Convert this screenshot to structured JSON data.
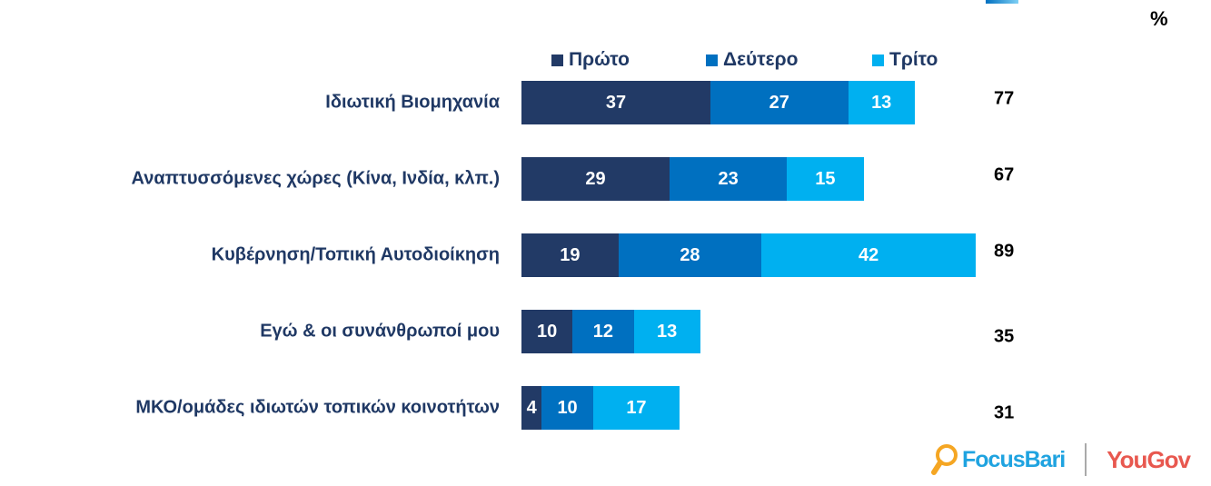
{
  "chart_data": {
    "type": "bar",
    "orientation": "horizontal",
    "stacked": true,
    "unit_label": "%",
    "categories": [
      "Ιδιωτική Βιομηχανία",
      "Αναπτυσσόμενες χώρες (Κίνα, Ινδία, κλπ.)",
      "Κυβέρνηση/Τοπική Αυτοδιοίκηση",
      "Εγώ & οι συνάνθρωποί μου",
      "ΜΚΟ/ομάδες ιδιωτών τοπικών κοινοτήτων"
    ],
    "series": [
      {
        "name": "Πρώτο",
        "color": "#223a66",
        "values": [
          37,
          29,
          19,
          10,
          4
        ]
      },
      {
        "name": "Δεύτερο",
        "color": "#0070c0",
        "values": [
          27,
          23,
          28,
          12,
          10
        ]
      },
      {
        "name": "Τρίτο",
        "color": "#00b0f0",
        "values": [
          13,
          15,
          42,
          13,
          17
        ]
      }
    ],
    "totals": [
      "77",
      "67",
      "89",
      "35",
      "31"
    ],
    "legend_position": "top",
    "grid": false
  },
  "logos": {
    "focusbari": "FocusBari",
    "yougov": "YouGov"
  }
}
